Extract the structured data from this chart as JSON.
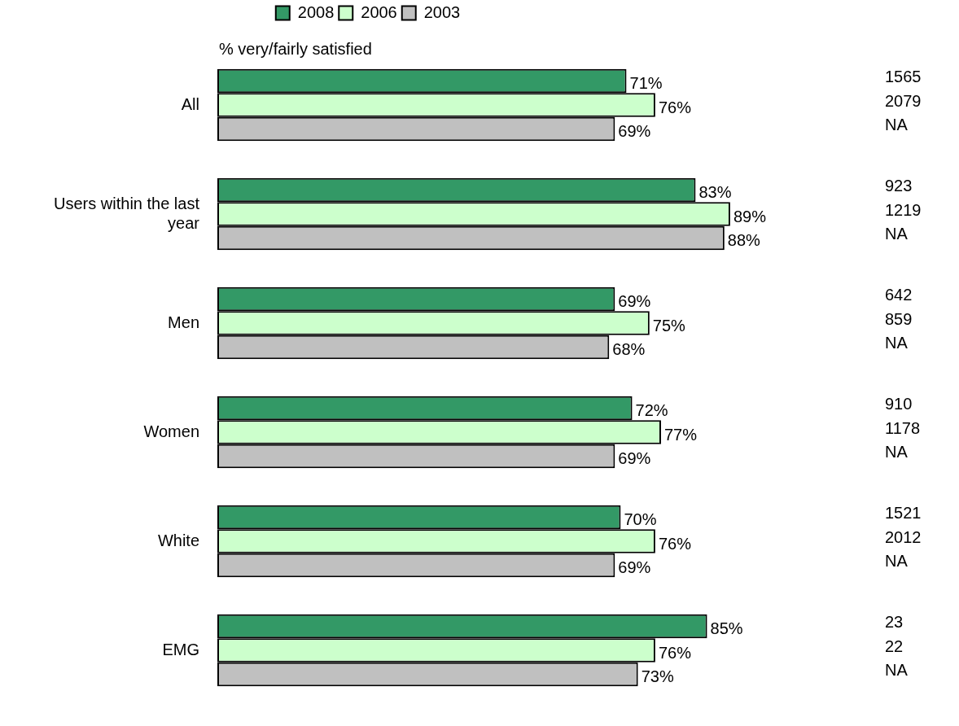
{
  "chart_data": {
    "type": "bar",
    "orientation": "horizontal",
    "subtitle": "% very/fairly satisfied",
    "categories": [
      "All",
      "Users within the last year",
      "Men",
      "Women",
      "White",
      "EMG"
    ],
    "series": [
      {
        "name": "2008",
        "color": "#339966",
        "values": [
          71,
          83,
          69,
          72,
          70,
          85
        ],
        "value_labels": [
          "71%",
          "83%",
          "69%",
          "72%",
          "70%",
          "85%"
        ]
      },
      {
        "name": "2006",
        "color": "#ccffcc",
        "values": [
          76,
          89,
          75,
          77,
          76,
          76
        ],
        "value_labels": [
          "76%",
          "89%",
          "75%",
          "77%",
          "76%",
          "76%"
        ]
      },
      {
        "name": "2003",
        "color": "#c0c0c0",
        "values": [
          69,
          88,
          68,
          69,
          69,
          73
        ],
        "value_labels": [
          "69%",
          "88%",
          "68%",
          "69%",
          "69%",
          "73%"
        ]
      }
    ],
    "tick_labels": "y",
    "legend": "top",
    "annotations": [
      "1565",
      "2079",
      "NA",
      "923",
      "1219",
      "NA",
      "642",
      "859",
      "NA",
      "910",
      "1178",
      "NA",
      "1521",
      "2012",
      "NA",
      "23",
      "22",
      "NA"
    ]
  }
}
